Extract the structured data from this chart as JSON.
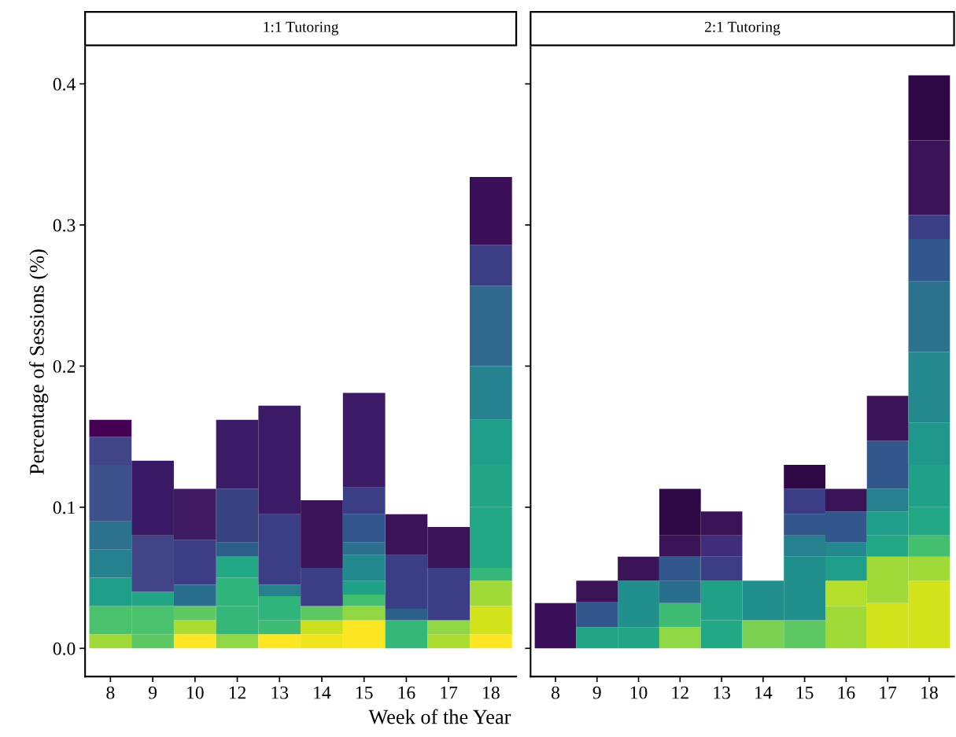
{
  "chart_data": [
    {
      "type": "bar",
      "stacked": true,
      "title": "1:1 Tutoring",
      "xlabel": "Week of the Year",
      "ylabel": "Percentage of Sessions (%)",
      "categories": [
        "8",
        "9",
        "10",
        "12",
        "13",
        "14",
        "15",
        "16",
        "17",
        "18"
      ],
      "ylim": [
        -0.02,
        0.426
      ],
      "yticks": [
        {
          "value": 0,
          "label": "0.0"
        },
        0.1,
        0.2,
        0.3,
        0.4
      ],
      "grid": false,
      "series": [
        {
          "values": [
            0.01,
            0.01,
            0.01,
            0.01,
            0.01,
            0.01,
            0.02,
            0.02,
            0.01,
            0.01
          ],
          "colors": [
            "#a0da39",
            "#5ec962",
            "#fde725",
            "#8fd744",
            "#fde725",
            "#f0e51c",
            "#fde725",
            "#35b779",
            "#addc30",
            "#fde725"
          ]
        },
        {
          "values": [
            0.02,
            0.02,
            0.01,
            0.02,
            0.01,
            0.01,
            0.01,
            0.008,
            0.01,
            0.02
          ],
          "colors": [
            "#4ac16d",
            "#4ac16d",
            "#addc30",
            "#35b779",
            "#3fbc73",
            "#c8e020",
            "#90d743",
            "#2c5f8a",
            "#8fd744",
            "#d2e21b"
          ]
        },
        {
          "values": [
            0.02,
            0.01,
            0.01,
            0.02,
            0.017,
            0.01,
            0.008,
            0.038,
            0.037,
            0.018
          ],
          "colors": [
            "#1f9e89",
            "#21a585",
            "#5ec962",
            "#2fb47c",
            "#2fb47c",
            "#5ec962",
            "#44bf70",
            "#3b3d85",
            "#3b3d85",
            "#a0da39"
          ]
        },
        {
          "values": [
            0.02,
            0.04,
            0.015,
            0.015,
            0.008,
            0.027,
            0.01,
            0.029,
            0.029,
            0.009
          ],
          "colors": [
            "#26828e",
            "#414487",
            "#2a6e8e",
            "#22a884",
            "#27808e",
            "#3b3d85",
            "#1fa187",
            "#3b1458",
            "#3b1458",
            "#35b779"
          ]
        },
        {
          "values": [
            0.02,
            0.053,
            0.032,
            0.01,
            0.05,
            0.048,
            0.018,
            null,
            null,
            0.043
          ],
          "colors": [
            "#2c728e",
            "#3a1a66",
            "#3b3d85",
            "#2c5f8a",
            "#3b3d85",
            "#3b1458",
            "#23898e",
            null,
            null,
            "#22a884"
          ]
        },
        {
          "values": [
            0.04,
            null,
            0.036,
            0.038,
            0.077,
            null,
            0.009,
            null,
            null,
            0.03
          ],
          "colors": [
            "#3b528b",
            null,
            "#3d1a62",
            "#38427f",
            "#3b1a66",
            null,
            "#2d6f8e",
            null,
            null,
            "#21a585"
          ]
        },
        {
          "values": [
            0.02,
            null,
            null,
            0.049,
            null,
            null,
            0.02,
            null,
            null,
            0.032
          ],
          "colors": [
            "#414487",
            null,
            null,
            "#3b1a66",
            null,
            null,
            "#31578c",
            null,
            null,
            "#1f9e89"
          ]
        },
        {
          "values": [
            0.012,
            null,
            null,
            null,
            null,
            null,
            0.019,
            null,
            null,
            0.038
          ],
          "colors": [
            "#440154",
            null,
            null,
            null,
            null,
            null,
            "#3b3d85",
            null,
            null,
            "#26828e"
          ]
        },
        {
          "values": [
            null,
            null,
            null,
            null,
            null,
            null,
            0.067,
            null,
            null,
            0.057
          ],
          "colors": [
            null,
            null,
            null,
            null,
            null,
            null,
            "#3b1a66",
            null,
            null,
            "#31688e"
          ]
        },
        {
          "values": [
            null,
            null,
            null,
            null,
            null,
            null,
            null,
            null,
            null,
            0.029
          ],
          "colors": [
            null,
            null,
            null,
            null,
            null,
            null,
            null,
            null,
            null,
            "#3b3d85"
          ]
        },
        {
          "values": [
            null,
            null,
            null,
            null,
            null,
            null,
            null,
            null,
            null,
            0.048
          ],
          "colors": [
            null,
            null,
            null,
            null,
            null,
            null,
            null,
            null,
            null,
            "#3b0f5a"
          ]
        }
      ]
    },
    {
      "type": "bar",
      "stacked": true,
      "title": "2:1 Tutoring",
      "categories": [
        "8",
        "9",
        "10",
        "12",
        "13",
        "14",
        "15",
        "16",
        "17",
        "18"
      ],
      "ylim": [
        -0.02,
        0.426
      ],
      "yticks": [
        {
          "value": 0,
          "label": null
        },
        {
          "value": 0.1,
          "label": null
        },
        {
          "value": 0.2,
          "label": null
        },
        {
          "value": 0.3,
          "label": null
        },
        {
          "value": 0.4,
          "label": null
        }
      ],
      "tick_labels": "x",
      "grid": false,
      "series": [
        {
          "values": [
            0.032,
            0.015,
            0.015,
            0.015,
            0.02,
            0.02,
            0.02,
            0.03,
            0.032,
            0.048
          ],
          "colors": [
            "#3b0f5a",
            "#21a585",
            "#21a585",
            "#8fd744",
            "#22a884",
            "#7ad151",
            "#5ec962",
            "#a0da39",
            "#d2e21b",
            "#d2e21b"
          ]
        },
        {
          "values": [
            null,
            0.018,
            0.033,
            0.017,
            0.028,
            0.028,
            0.045,
            0.018,
            0.033,
            0.017
          ],
          "colors": [
            null,
            "#31578c",
            "#21908d",
            "#3fbc73",
            "#1fa187",
            "#21908d",
            "#21908d",
            "#b5de2b",
            "#a0da39",
            "#a0da39"
          ]
        },
        {
          "values": [
            null,
            0.015,
            0.017,
            0.016,
            0.017,
            null,
            0.015,
            0.017,
            0.015,
            0.015
          ],
          "colors": [
            null,
            "#3b1458",
            "#3b1458",
            "#2a6e8e",
            "#3b3d85",
            null,
            "#27808e",
            "#1f9e89",
            "#22a884",
            "#44bf70"
          ]
        },
        {
          "values": [
            null,
            null,
            null,
            0.017,
            0.015,
            null,
            0.015,
            0.01,
            0.017,
            0.02
          ],
          "colors": [
            null,
            null,
            null,
            "#31578c",
            "#3e2d7a",
            null,
            "#31578c",
            "#23898e",
            "#1f9e89",
            "#22a884"
          ]
        },
        {
          "values": [
            null,
            null,
            null,
            0.015,
            0.017,
            null,
            0.018,
            0.022,
            0.016,
            0.03
          ],
          "colors": [
            null,
            null,
            null,
            "#3b1458",
            "#3b1458",
            null,
            "#3b3d85",
            "#31578c",
            "#27808e",
            "#1fa187"
          ]
        },
        {
          "values": [
            null,
            null,
            null,
            0.033,
            null,
            null,
            0.017,
            0.016,
            0.034,
            0.03
          ],
          "colors": [
            null,
            null,
            null,
            "#2d0845",
            null,
            null,
            "#2d0845",
            "#3b1458",
            "#31578c",
            "#1f988b"
          ]
        },
        {
          "values": [
            null,
            null,
            null,
            null,
            null,
            null,
            null,
            null,
            0.032,
            0.05
          ],
          "colors": [
            null,
            null,
            null,
            null,
            null,
            null,
            null,
            null,
            "#3b1458",
            "#23898e"
          ]
        },
        {
          "values": [
            null,
            null,
            null,
            null,
            null,
            null,
            null,
            null,
            null,
            0.05
          ],
          "colors": [
            null,
            null,
            null,
            null,
            null,
            null,
            null,
            null,
            null,
            "#2c728e"
          ]
        },
        {
          "values": [
            null,
            null,
            null,
            null,
            null,
            null,
            null,
            null,
            null,
            0.03
          ],
          "colors": [
            null,
            null,
            null,
            null,
            null,
            null,
            null,
            null,
            null,
            "#31578c"
          ]
        },
        {
          "values": [
            null,
            null,
            null,
            null,
            null,
            null,
            null,
            null,
            null,
            0.017
          ],
          "colors": [
            null,
            null,
            null,
            null,
            null,
            null,
            null,
            null,
            null,
            "#3b3d85"
          ]
        },
        {
          "values": [
            null,
            null,
            null,
            null,
            null,
            null,
            null,
            null,
            null,
            0.053
          ],
          "colors": [
            null,
            null,
            null,
            null,
            null,
            null,
            null,
            null,
            null,
            "#3b1458"
          ]
        },
        {
          "values": [
            null,
            null,
            null,
            null,
            null,
            null,
            null,
            null,
            null,
            0.046
          ],
          "colors": [
            null,
            null,
            null,
            null,
            null,
            null,
            null,
            null,
            null,
            "#2d0845"
          ]
        }
      ]
    }
  ]
}
